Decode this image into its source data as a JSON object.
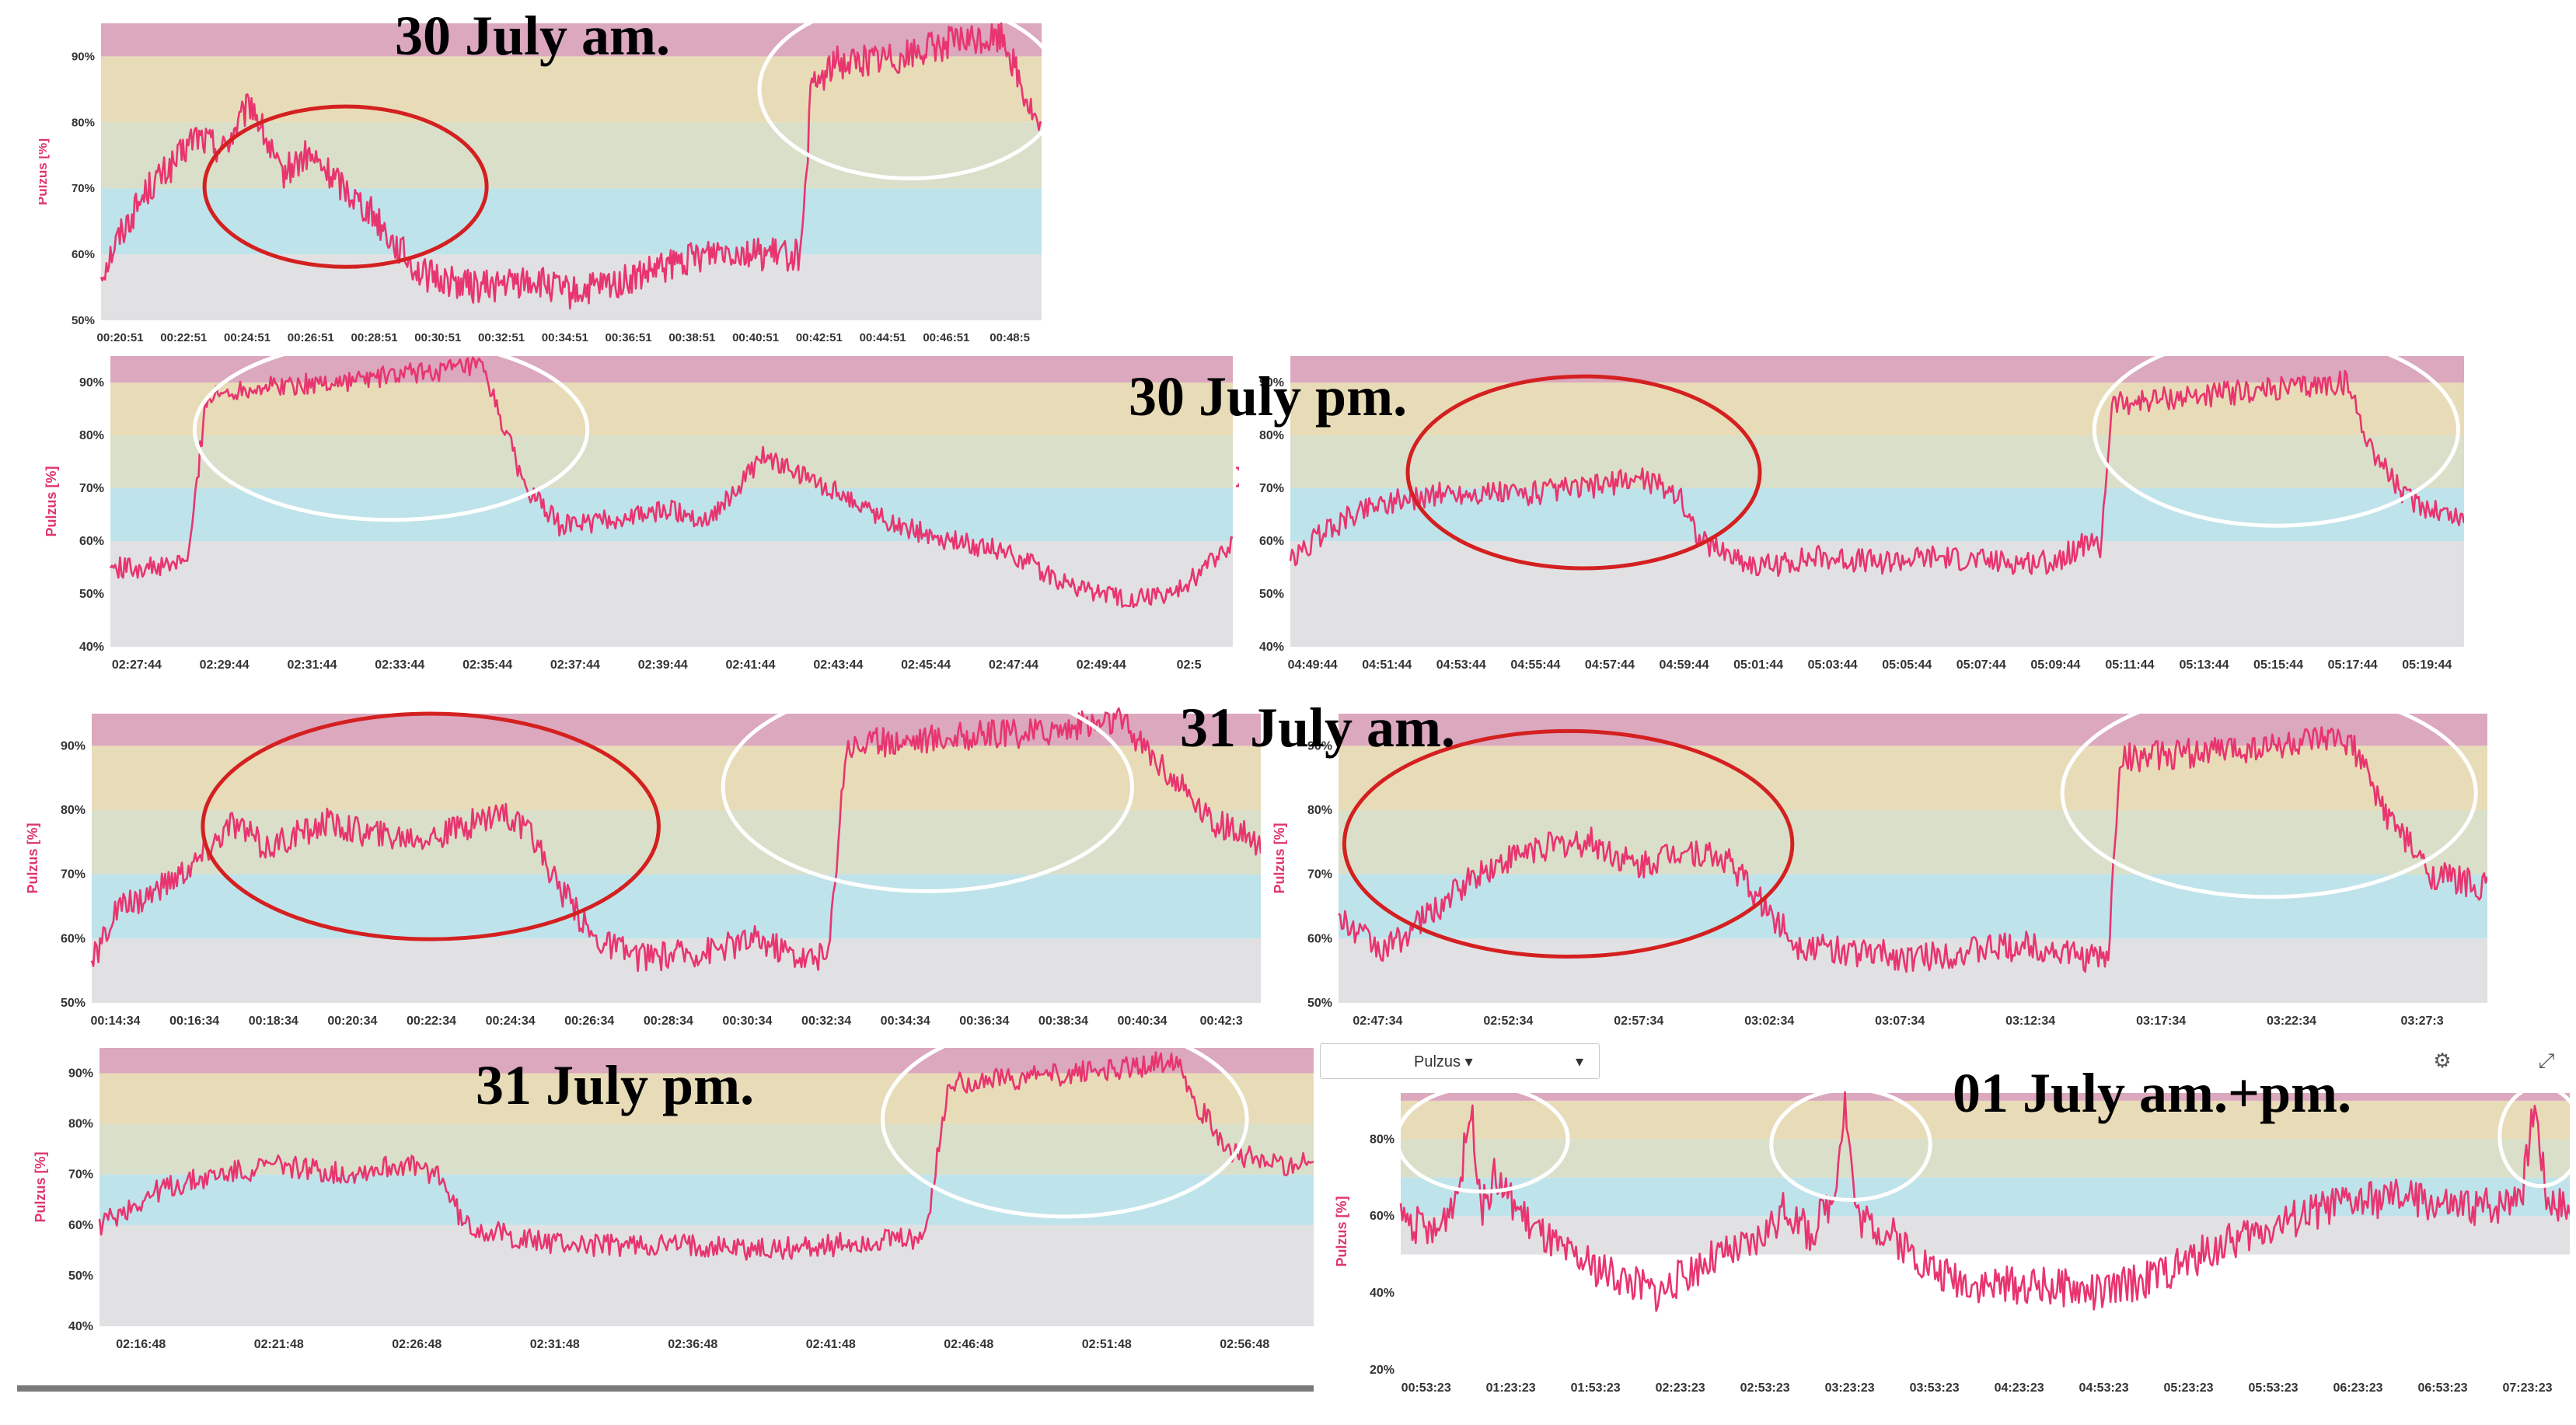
{
  "titles": {
    "jul30am": "30 July am.",
    "jul30pm": "30 July pm.",
    "jul31am": "31 July am.",
    "jul31pm": "31 July pm.",
    "jul01": "01 July am.+pm."
  },
  "toolbar": {
    "dropdown_label": "Pulzus ▾",
    "dropdown_caret": "▾",
    "settings_icon": "gear-icon",
    "expand_icon": "expand-icon"
  },
  "colors": {
    "line": "#e8356f",
    "red_ellipse": "#d42020",
    "white_ellipse": "#ffffff",
    "zone_gray": "#e1e1e3",
    "zone_blue": "#bfe3ea",
    "zone_green": "#d9dfc9",
    "zone_yellow": "#e8dcb8",
    "zone_pink": "#dba8be"
  },
  "chart_data": [
    {
      "id": "p1",
      "type": "line",
      "ylabel": "Pulzus [%]",
      "yticks": [
        "50%",
        "60%",
        "70%",
        "80%",
        "90%"
      ],
      "ylim": [
        50,
        95
      ],
      "xticks": [
        "00:20:51",
        "00:22:51",
        "00:24:51",
        "00:26:51",
        "00:28:51",
        "00:30:51",
        "00:32:51",
        "00:34:51",
        "00:36:51",
        "00:38:51",
        "00:40:51",
        "00:42:51",
        "00:44:51",
        "00:46:51",
        "00:48:5"
      ],
      "keypoints": [
        [
          0,
          57
        ],
        [
          0.02,
          63
        ],
        [
          0.05,
          70
        ],
        [
          0.08,
          74
        ],
        [
          0.1,
          78
        ],
        [
          0.13,
          76
        ],
        [
          0.16,
          83
        ],
        [
          0.19,
          72
        ],
        [
          0.22,
          75
        ],
        [
          0.26,
          70
        ],
        [
          0.29,
          66
        ],
        [
          0.31,
          62
        ],
        [
          0.34,
          57
        ],
        [
          0.4,
          55
        ],
        [
          0.46,
          56
        ],
        [
          0.5,
          54
        ],
        [
          0.56,
          56
        ],
        [
          0.6,
          58
        ],
        [
          0.66,
          61
        ],
        [
          0.7,
          60
        ],
        [
          0.745,
          60
        ],
        [
          0.755,
          85
        ],
        [
          0.78,
          89
        ],
        [
          0.85,
          90
        ],
        [
          0.9,
          92
        ],
        [
          0.96,
          93
        ],
        [
          0.98,
          85
        ],
        [
          1,
          78
        ]
      ],
      "noise": 2.5
    },
    {
      "id": "p2",
      "type": "line",
      "ylabel": "Pulzus [%]",
      "yticks": [
        "40%",
        "50%",
        "60%",
        "70%",
        "80%",
        "90%"
      ],
      "ylim": [
        40,
        95
      ],
      "xticks": [
        "02:27:44",
        "02:29:44",
        "02:31:44",
        "02:33:44",
        "02:35:44",
        "02:37:44",
        "02:39:44",
        "02:41:44",
        "02:43:44",
        "02:45:44",
        "02:47:44",
        "02:49:44",
        "02:5"
      ],
      "keypoints": [
        [
          0,
          55
        ],
        [
          0.05,
          55
        ],
        [
          0.07,
          57
        ],
        [
          0.085,
          87
        ],
        [
          0.12,
          89
        ],
        [
          0.2,
          90
        ],
        [
          0.28,
          92
        ],
        [
          0.33,
          93
        ],
        [
          0.345,
          85
        ],
        [
          0.37,
          70
        ],
        [
          0.4,
          63
        ],
        [
          0.45,
          64
        ],
        [
          0.5,
          66
        ],
        [
          0.53,
          64
        ],
        [
          0.56,
          70
        ],
        [
          0.58,
          76
        ],
        [
          0.62,
          72
        ],
        [
          0.66,
          68
        ],
        [
          0.7,
          63
        ],
        [
          0.75,
          60
        ],
        [
          0.8,
          58
        ],
        [
          0.85,
          52
        ],
        [
          0.9,
          49
        ],
        [
          0.95,
          50
        ],
        [
          0.98,
          56
        ],
        [
          1,
          60
        ]
      ],
      "noise": 2
    },
    {
      "id": "p3",
      "type": "line",
      "ylabel": "Pulzus [%]",
      "yticks": [
        "40%",
        "50%",
        "60%",
        "70%",
        "80%",
        "90%"
      ],
      "ylim": [
        40,
        95
      ],
      "xticks": [
        "04:49:44",
        "04:51:44",
        "04:53:44",
        "04:55:44",
        "04:57:44",
        "04:59:44",
        "05:01:44",
        "05:03:44",
        "05:05:44",
        "05:07:44",
        "05:09:44",
        "05:11:44",
        "05:13:44",
        "05:15:44",
        "05:17:44",
        "05:19:44"
      ],
      "keypoints": [
        [
          0,
          56
        ],
        [
          0.03,
          62
        ],
        [
          0.07,
          67
        ],
        [
          0.13,
          69
        ],
        [
          0.2,
          69
        ],
        [
          0.25,
          70
        ],
        [
          0.3,
          72
        ],
        [
          0.33,
          69
        ],
        [
          0.35,
          60
        ],
        [
          0.4,
          55
        ],
        [
          0.45,
          57
        ],
        [
          0.5,
          56
        ],
        [
          0.55,
          57
        ],
        [
          0.6,
          56
        ],
        [
          0.65,
          56
        ],
        [
          0.68,
          60
        ],
        [
          0.69,
          58
        ],
        [
          0.7,
          86
        ],
        [
          0.75,
          87
        ],
        [
          0.8,
          88
        ],
        [
          0.86,
          89
        ],
        [
          0.9,
          90
        ],
        [
          0.92,
          78
        ],
        [
          0.95,
          68
        ],
        [
          1,
          64
        ]
      ],
      "noise": 2.3
    },
    {
      "id": "p4",
      "type": "line",
      "ylabel": "Pulzus [%]",
      "yticks": [
        "50%",
        "60%",
        "70%",
        "80%",
        "90%"
      ],
      "ylim": [
        50,
        95
      ],
      "xticks": [
        "00:14:34",
        "00:16:34",
        "00:18:34",
        "00:20:34",
        "00:22:34",
        "00:24:34",
        "00:26:34",
        "00:28:34",
        "00:30:34",
        "00:32:34",
        "00:34:34",
        "00:36:34",
        "00:38:34",
        "00:40:34",
        "00:42:3"
      ],
      "keypoints": [
        [
          0,
          56
        ],
        [
          0.02,
          64
        ],
        [
          0.06,
          68
        ],
        [
          0.09,
          72
        ],
        [
          0.12,
          78
        ],
        [
          0.15,
          74
        ],
        [
          0.2,
          78
        ],
        [
          0.25,
          76
        ],
        [
          0.3,
          76
        ],
        [
          0.35,
          80
        ],
        [
          0.38,
          75
        ],
        [
          0.4,
          68
        ],
        [
          0.43,
          60
        ],
        [
          0.47,
          57
        ],
        [
          0.52,
          58
        ],
        [
          0.57,
          60
        ],
        [
          0.61,
          57
        ],
        [
          0.63,
          57
        ],
        [
          0.645,
          90
        ],
        [
          0.7,
          91
        ],
        [
          0.8,
          92
        ],
        [
          0.88,
          94
        ],
        [
          0.92,
          86
        ],
        [
          0.96,
          78
        ],
        [
          1,
          75
        ]
      ],
      "noise": 2.3
    },
    {
      "id": "p5",
      "type": "line",
      "ylabel": "Pulzus [%]",
      "yticks": [
        "50%",
        "60%",
        "70%",
        "80%",
        "90%"
      ],
      "ylim": [
        50,
        95
      ],
      "xticks": [
        "02:47:34",
        "02:52:34",
        "02:57:34",
        "03:02:34",
        "03:07:34",
        "03:12:34",
        "03:17:34",
        "03:22:34",
        "03:27:3"
      ],
      "keypoints": [
        [
          0,
          63
        ],
        [
          0.04,
          58
        ],
        [
          0.08,
          64
        ],
        [
          0.12,
          70
        ],
        [
          0.17,
          74
        ],
        [
          0.22,
          75
        ],
        [
          0.26,
          71
        ],
        [
          0.3,
          74
        ],
        [
          0.34,
          72
        ],
        [
          0.37,
          65
        ],
        [
          0.4,
          59
        ],
        [
          0.45,
          58
        ],
        [
          0.5,
          57
        ],
        [
          0.55,
          58
        ],
        [
          0.6,
          59
        ],
        [
          0.65,
          57
        ],
        [
          0.67,
          57
        ],
        [
          0.68,
          88
        ],
        [
          0.75,
          89
        ],
        [
          0.82,
          90
        ],
        [
          0.88,
          91
        ],
        [
          0.91,
          80
        ],
        [
          0.95,
          70
        ],
        [
          1,
          68
        ]
      ],
      "noise": 2.3
    },
    {
      "id": "p6",
      "type": "line",
      "ylabel": "Pulzus [%]",
      "yticks": [
        "40%",
        "50%",
        "60%",
        "70%",
        "80%",
        "90%"
      ],
      "ylim": [
        40,
        95
      ],
      "xticks": [
        "02:16:48",
        "02:21:48",
        "02:26:48",
        "02:31:48",
        "02:36:48",
        "02:41:48",
        "02:46:48",
        "02:51:48",
        "02:56:48"
      ],
      "keypoints": [
        [
          0,
          60
        ],
        [
          0.05,
          67
        ],
        [
          0.1,
          70
        ],
        [
          0.15,
          72
        ],
        [
          0.2,
          70
        ],
        [
          0.25,
          72
        ],
        [
          0.28,
          70
        ],
        [
          0.3,
          60
        ],
        [
          0.35,
          57
        ],
        [
          0.4,
          56
        ],
        [
          0.5,
          56
        ],
        [
          0.55,
          55
        ],
        [
          0.6,
          56
        ],
        [
          0.66,
          57
        ],
        [
          0.68,
          58
        ],
        [
          0.7,
          88
        ],
        [
          0.75,
          89
        ],
        [
          0.8,
          90
        ],
        [
          0.85,
          91
        ],
        [
          0.89,
          93
        ],
        [
          0.9,
          85
        ],
        [
          0.93,
          75
        ],
        [
          0.96,
          72
        ],
        [
          1,
          72
        ]
      ],
      "noise": 2.3
    },
    {
      "id": "p7",
      "type": "line",
      "ylabel": "Pulzus [%]",
      "yticks": [
        "20%",
        "40%",
        "60%",
        "80%"
      ],
      "ylim": [
        20,
        92
      ],
      "xticks": [
        "00:53:23",
        "01:23:23",
        "01:53:23",
        "02:23:23",
        "02:53:23",
        "03:23:23",
        "03:53:23",
        "04:23:23",
        "04:53:23",
        "05:23:23",
        "05:53:23",
        "06:23:23",
        "06:53:23",
        "07:23:23"
      ],
      "keypoints": [
        [
          0,
          60
        ],
        [
          0.03,
          55
        ],
        [
          0.05,
          68
        ],
        [
          0.06,
          88
        ],
        [
          0.07,
          62
        ],
        [
          0.08,
          70
        ],
        [
          0.11,
          58
        ],
        [
          0.14,
          50
        ],
        [
          0.18,
          45
        ],
        [
          0.22,
          40
        ],
        [
          0.26,
          48
        ],
        [
          0.3,
          52
        ],
        [
          0.33,
          62
        ],
        [
          0.35,
          55
        ],
        [
          0.37,
          65
        ],
        [
          0.38,
          90
        ],
        [
          0.39,
          60
        ],
        [
          0.42,
          55
        ],
        [
          0.46,
          45
        ],
        [
          0.5,
          42
        ],
        [
          0.55,
          42
        ],
        [
          0.6,
          40
        ],
        [
          0.65,
          45
        ],
        [
          0.7,
          52
        ],
        [
          0.75,
          58
        ],
        [
          0.8,
          63
        ],
        [
          0.86,
          65
        ],
        [
          0.9,
          62
        ],
        [
          0.94,
          63
        ],
        [
          0.96,
          68
        ],
        [
          0.97,
          90
        ],
        [
          0.98,
          65
        ],
        [
          1,
          62
        ]
      ],
      "noise": 5
    }
  ]
}
